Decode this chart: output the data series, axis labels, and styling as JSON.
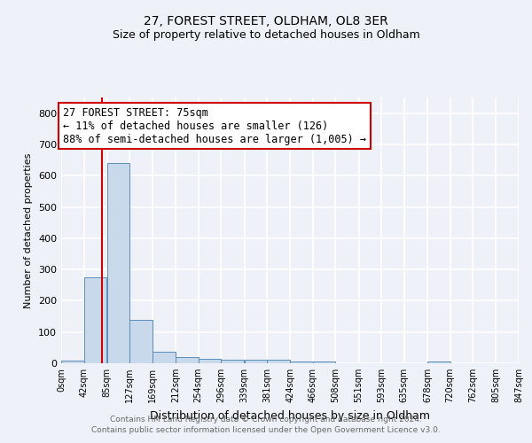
{
  "title1": "27, FOREST STREET, OLDHAM, OL8 3ER",
  "title2": "Size of property relative to detached houses in Oldham",
  "xlabel": "Distribution of detached houses by size in Oldham",
  "ylabel": "Number of detached properties",
  "footer1": "Contains HM Land Registry data © Crown copyright and database right 2024.",
  "footer2": "Contains public sector information licensed under the Open Government Licence v3.0.",
  "bin_edges": [
    0,
    42,
    85,
    127,
    169,
    212,
    254,
    296,
    339,
    381,
    424,
    466,
    508,
    551,
    593,
    635,
    678,
    720,
    762,
    805,
    847
  ],
  "bar_heights": [
    8,
    275,
    640,
    140,
    38,
    20,
    13,
    10,
    10,
    10,
    6,
    5,
    0,
    0,
    0,
    0,
    7,
    0,
    0,
    0
  ],
  "bar_color": "#c9d9ec",
  "bar_edge_color": "#5b8db8",
  "property_size": 75,
  "vline_color": "#cc0000",
  "annotation_line1": "27 FOREST STREET: 75sqm",
  "annotation_line2": "← 11% of detached houses are smaller (126)",
  "annotation_line3": "88% of semi-detached houses are larger (1,005) →",
  "annotation_box_color": "#ffffff",
  "annotation_box_edge": "#cc0000",
  "ylim": [
    0,
    850
  ],
  "yticks": [
    0,
    100,
    200,
    300,
    400,
    500,
    600,
    700,
    800
  ],
  "tick_labels": [
    "0sqm",
    "42sqm",
    "85sqm",
    "127sqm",
    "169sqm",
    "212sqm",
    "254sqm",
    "296sqm",
    "339sqm",
    "381sqm",
    "424sqm",
    "466sqm",
    "508sqm",
    "551sqm",
    "593sqm",
    "635sqm",
    "678sqm",
    "720sqm",
    "762sqm",
    "805sqm",
    "847sqm"
  ],
  "background_color": "#eef2f8",
  "grid_color": "#ffffff",
  "title1_fontsize": 10,
  "title2_fontsize": 9,
  "annotation_fontsize": 8.5,
  "ylabel_fontsize": 8,
  "xlabel_fontsize": 9,
  "footer_fontsize": 6.5,
  "footer_color": "#666666"
}
